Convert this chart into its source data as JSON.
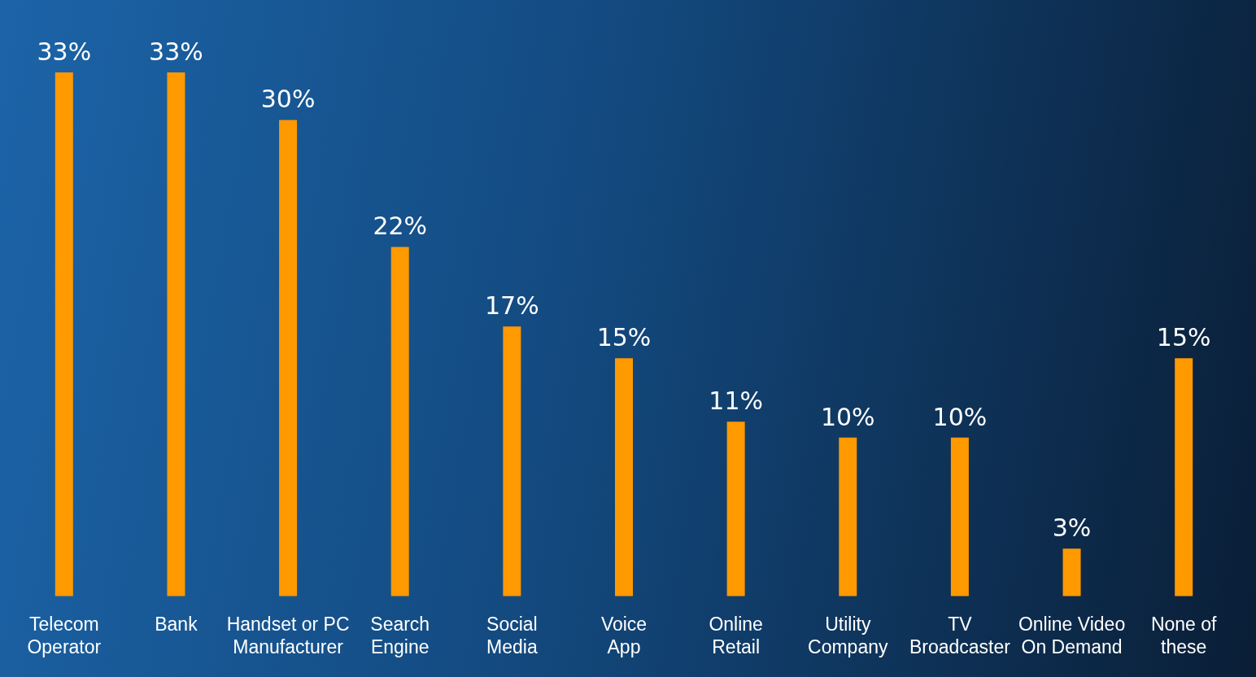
{
  "chart_data": {
    "type": "bar",
    "categories": [
      "Telecom Operator",
      "Bank",
      "Handset or PC Manufacturer",
      "Search Engine",
      "Social Media",
      "Voice App",
      "Online Retail",
      "Utility Company",
      "TV Broadcaster",
      "Online Video On Demand",
      "None of these"
    ],
    "values": [
      33,
      33,
      30,
      22,
      17,
      15,
      11,
      10,
      10,
      3,
      15
    ],
    "value_labels": [
      "33%",
      "33%",
      "30%",
      "22%",
      "17%",
      "15%",
      "11%",
      "10%",
      "10%",
      "3%",
      "15%"
    ],
    "color": "#ff9900",
    "grid": false,
    "legend": false
  }
}
